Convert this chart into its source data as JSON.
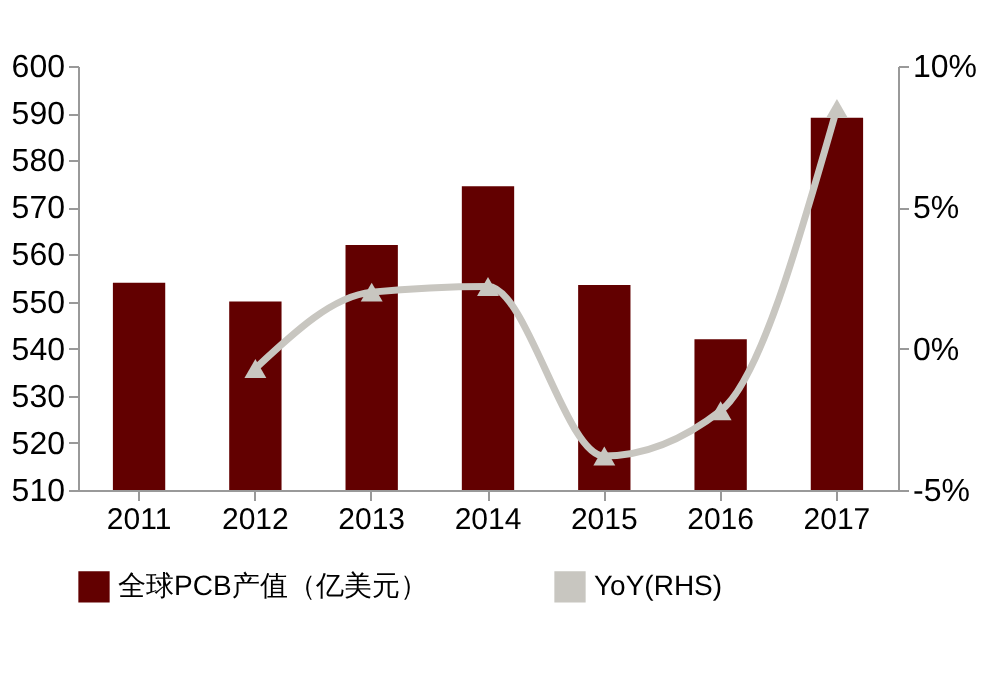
{
  "chart_data": {
    "type": "bar",
    "categories": [
      "2011",
      "2012",
      "2013",
      "2014",
      "2015",
      "2016",
      "2017"
    ],
    "series": [
      {
        "name": "全球PCB产值（亿美元）",
        "color": "#620000",
        "values": [
          554,
          550,
          562,
          574.5,
          553.5,
          542,
          589
        ]
      },
      {
        "name": "YoY(RHS)",
        "type": "line",
        "axis": "y2",
        "color": "#c8c6c0",
        "marker": "triangle",
        "values": [
          null,
          -0.7,
          2.0,
          2.2,
          -3.8,
          -2.2,
          8.5
        ]
      }
    ],
    "ylim": [
      510,
      600
    ],
    "yticks": [
      510,
      520,
      530,
      540,
      550,
      560,
      570,
      580,
      590,
      600
    ],
    "y2lim": [
      -5,
      10
    ],
    "y2ticks": [
      {
        "value": -5,
        "label": "-5%"
      },
      {
        "value": 0,
        "label": "0%"
      },
      {
        "value": 5,
        "label": "5%"
      },
      {
        "value": 10,
        "label": "10%"
      }
    ],
    "grid": false,
    "legend": "bottom"
  }
}
